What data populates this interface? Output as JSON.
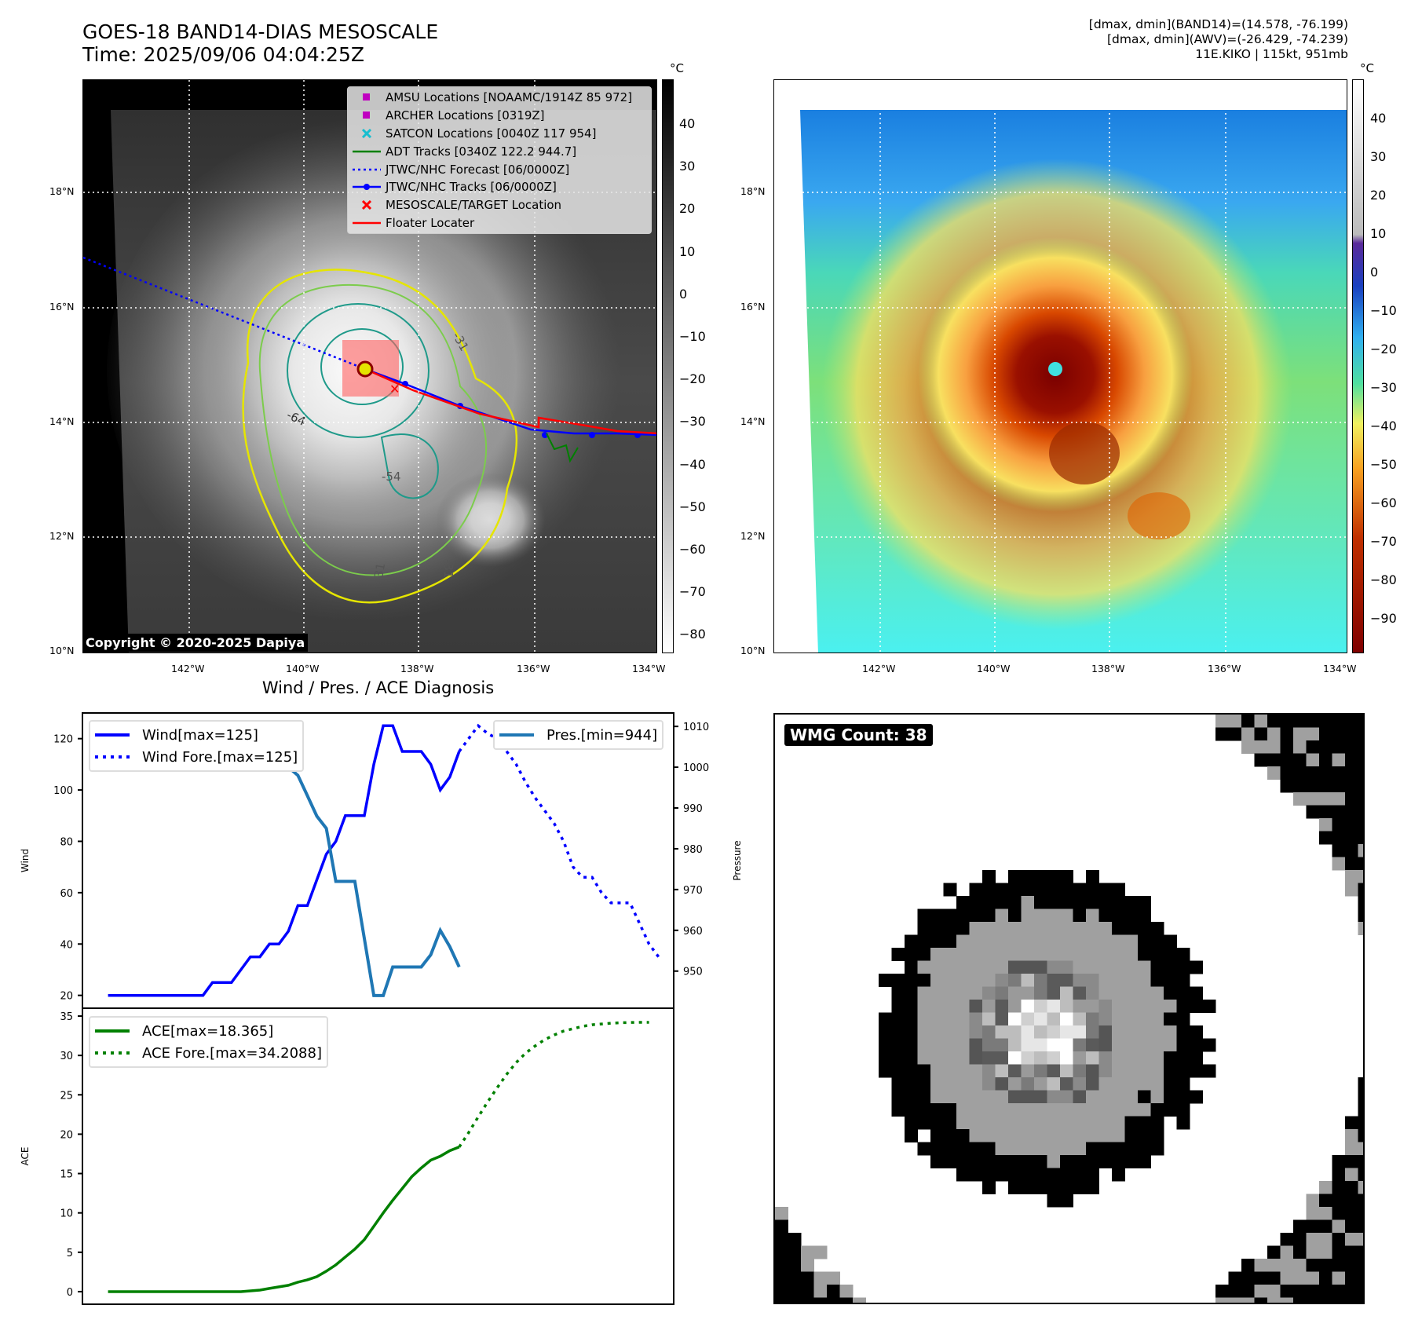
{
  "header": {
    "title_line1": "GOES-18 BAND14-DIAS MESOSCALE",
    "title_line2": "Time: 2025/09/06 04:04:25Z",
    "info_line1": "[dmax, dmin](BAND14)=(14.578, -76.199)",
    "info_line2": "[dmax, dmin](AWV)=(-26.429, -74.239)",
    "info_line3": "11E.KIKO | 115kt, 951mb"
  },
  "maps": {
    "lon_labels": [
      "142°W",
      "140°W",
      "138°W",
      "136°W",
      "134°W"
    ],
    "lat_labels": [
      "18°N",
      "16°N",
      "14°N",
      "12°N",
      "10°N"
    ],
    "colorbar_unit": "°C",
    "left_colorbar_ticks": [
      "40",
      "30",
      "20",
      "10",
      "0",
      "−10",
      "−20",
      "−30",
      "−40",
      "−50",
      "−60",
      "−70",
      "−80"
    ],
    "right_colorbar_ticks": [
      "40",
      "30",
      "20",
      "10",
      "0",
      "−10",
      "−20",
      "−30",
      "−40",
      "−50",
      "−60",
      "−70",
      "−80",
      "−90"
    ],
    "contour_labels": [
      "-64",
      "-54",
      "-31",
      "-31",
      "-31",
      "-54"
    ],
    "copyright": "Copyright © 2020-2025 Dapiya",
    "legend": [
      {
        "label": "AMSU Locations [NOAAMC/1914Z 85 972]",
        "symbol": "square",
        "color": "#c000c0"
      },
      {
        "label": "ARCHER Locations [0319Z]",
        "symbol": "square",
        "color": "#c000c0"
      },
      {
        "label": "SATCON Locations [0040Z 117 954]",
        "symbol": "x",
        "color": "#17becf"
      },
      {
        "label": "ADT Tracks [0340Z 122.2 944.7]",
        "symbol": "line",
        "color": "#008000"
      },
      {
        "label": "JTWC/NHC Forecast [06/0000Z]",
        "symbol": "dotted",
        "color": "#0000ff"
      },
      {
        "label": "JTWC/NHC Tracks [06/0000Z]",
        "symbol": "line-dot",
        "color": "#0000ff"
      },
      {
        "label": "MESOSCALE/TARGET Location",
        "symbol": "x",
        "color": "#ff0000"
      },
      {
        "label": "Floater Locater",
        "symbol": "line",
        "color": "#ff0000"
      }
    ]
  },
  "chart_data": [
    {
      "type": "line",
      "title": "Wind / Pres. / ACE Diagnosis",
      "ylabel": "Wind",
      "ylabel_right": "Pressure",
      "xlim": [
        -2.7,
        59.6
      ],
      "ylim": [
        15,
        130
      ],
      "ylim_right": [
        940.9,
        1013.3
      ],
      "yticks": [
        20,
        40,
        60,
        80,
        100,
        120
      ],
      "yticks_right": [
        950,
        960,
        970,
        980,
        990,
        1000,
        1010
      ],
      "series": [
        {
          "name": "Wind[max=125]",
          "axis": "left",
          "style": "solid",
          "color": "#0000ff",
          "x0": 0,
          "values": [
            20,
            20,
            20,
            20,
            20,
            20,
            20,
            20,
            20,
            20,
            20,
            25,
            25,
            25,
            30,
            35,
            35,
            40,
            40,
            45,
            55,
            55,
            65,
            75,
            80,
            90,
            90,
            90,
            110,
            125,
            125,
            115,
            115,
            115,
            110,
            100,
            105,
            115
          ]
        },
        {
          "name": "Wind Fore.[max=125]",
          "axis": "left",
          "style": "dotted",
          "color": "#0000ff",
          "x0": 37,
          "values": [
            115,
            120,
            125,
            122,
            120,
            115,
            110,
            103,
            97,
            92,
            87,
            80,
            70,
            66,
            66,
            60,
            56,
            56,
            56,
            48,
            40,
            35
          ]
        },
        {
          "name": "Pres.[min=944]",
          "axis": "right",
          "style": "solid",
          "color": "#1f77b4",
          "x0": 0,
          "values": [
            1010,
            1010,
            1010,
            1010,
            1010,
            1010,
            1010,
            1010,
            1010,
            1010,
            1010,
            1009,
            1009,
            1009,
            1007,
            1006,
            1004,
            1004,
            1001,
            1000,
            998,
            993,
            988,
            985,
            972,
            972,
            972,
            958,
            944,
            944,
            951,
            951,
            951,
            951,
            954,
            960,
            956,
            951
          ]
        }
      ]
    },
    {
      "type": "line",
      "ylabel": "ACE",
      "xlim": [
        -2.7,
        59.6
      ],
      "ylim": [
        -1.6,
        36
      ],
      "yticks": [
        0,
        5,
        10,
        15,
        20,
        25,
        30,
        35
      ],
      "series": [
        {
          "name": "ACE[max=18.365]",
          "style": "solid",
          "color": "#008000",
          "x0": 0,
          "values": [
            0,
            0,
            0,
            0,
            0,
            0,
            0,
            0,
            0,
            0,
            0,
            0,
            0,
            0,
            0,
            0.1,
            0.2,
            0.4,
            0.6,
            0.8,
            1.2,
            1.5,
            1.9,
            2.6,
            3.4,
            4.4,
            5.4,
            6.6,
            8.3,
            10,
            11.6,
            13.1,
            14.6,
            15.7,
            16.7,
            17.2,
            17.9,
            18.365
          ]
        },
        {
          "name": "ACE Fore.[max=34.2088]",
          "style": "dotted",
          "color": "#008000",
          "x0": 37,
          "values": [
            18.365,
            20.2,
            22.2,
            24.1,
            25.9,
            27.6,
            29.1,
            30.3,
            31.2,
            32,
            32.6,
            33.1,
            33.4,
            33.7,
            33.9,
            34,
            34.1,
            34.15,
            34.18,
            34.2,
            34.2088
          ]
        }
      ]
    }
  ],
  "wmg": {
    "label": "WMG Count: 38"
  }
}
